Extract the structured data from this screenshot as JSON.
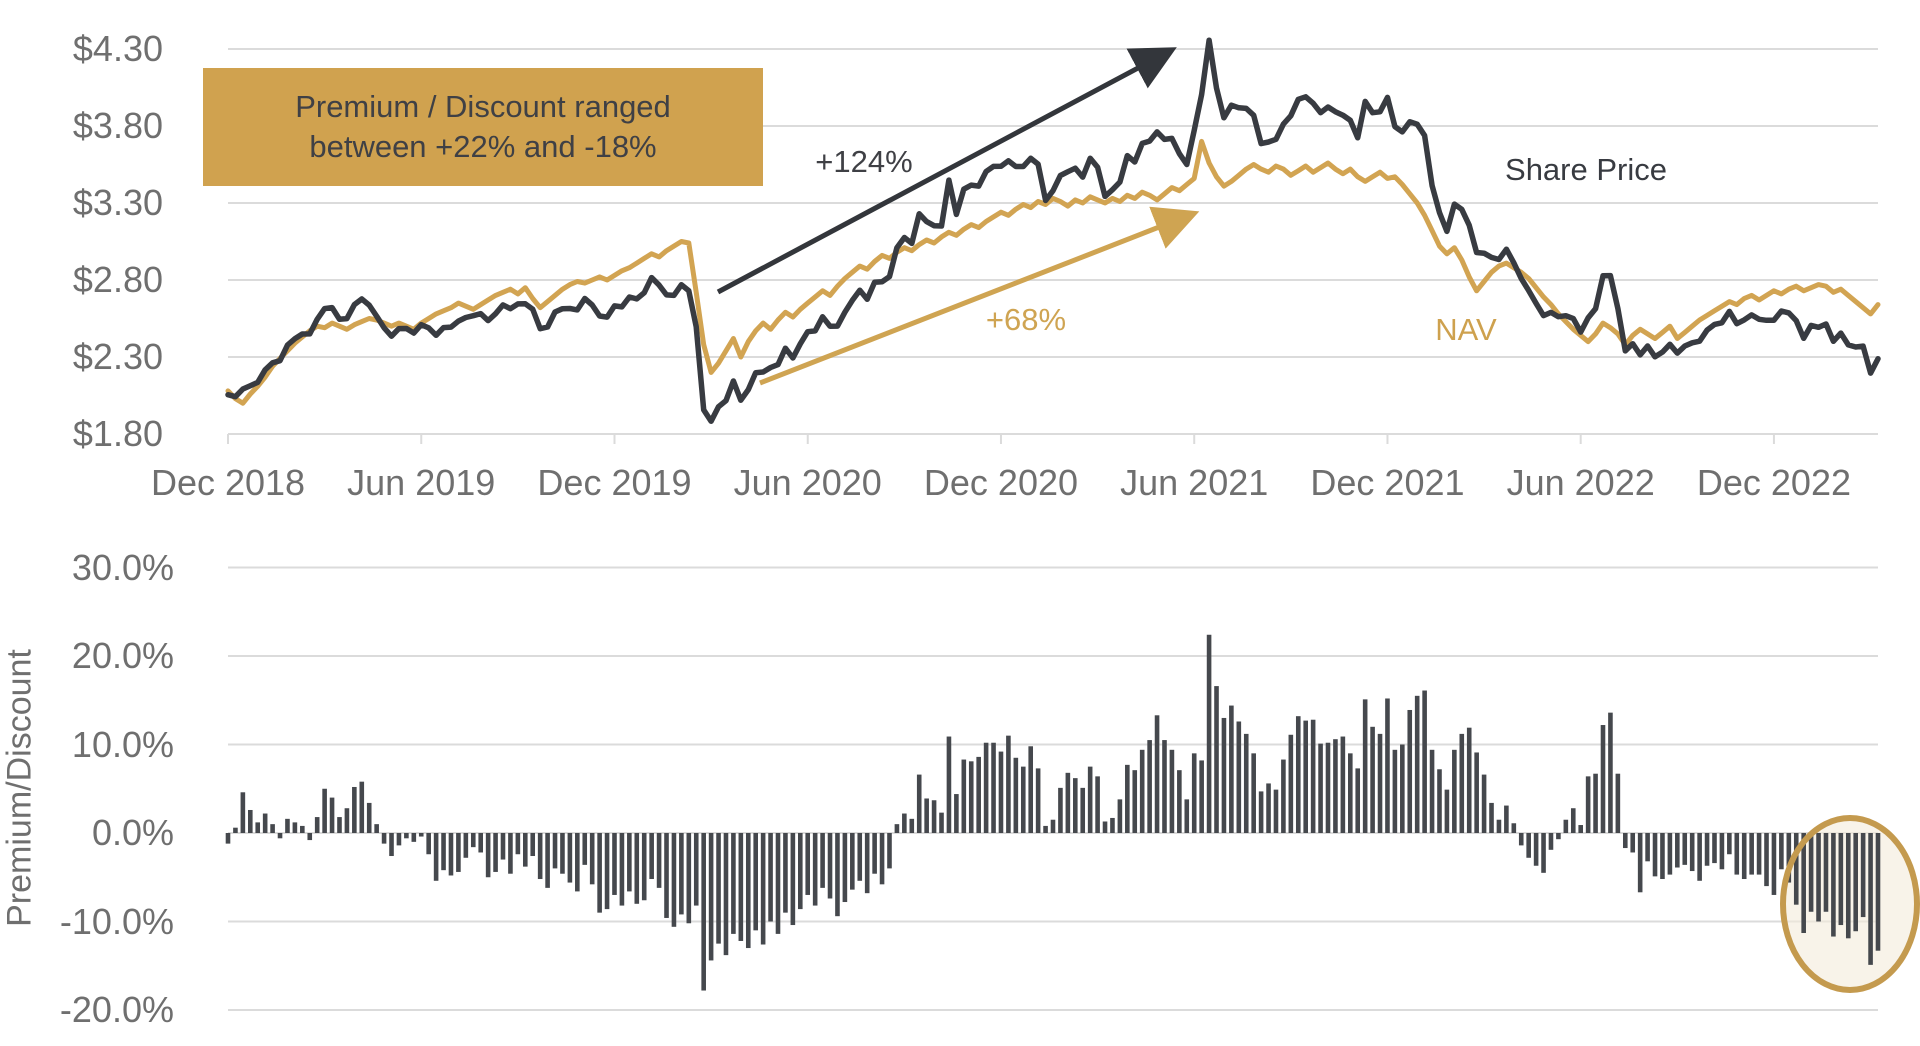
{
  "colors": {
    "share_line": "#383B41",
    "nav_line": "#D2A452",
    "bars": "#45484D",
    "grid": "#DBDBDB",
    "tick_text": "#6F6F6F",
    "annotation_box_bg": "#D0A24F",
    "annotation_box_text": "#3F4045",
    "black_arrow": "#33363B",
    "gold_arrow": "#CFA452",
    "circle_stroke": "#C49A4E",
    "circle_fill": "#F3ECDC",
    "background": "#FFFFFF"
  },
  "annotations": {
    "box_line1": "Premium / Discount ranged",
    "box_line2": "between +22% and -18%",
    "share_growth": "+124%",
    "nav_growth": "+68%",
    "share_label": "Share Price",
    "nav_label": "NAV"
  },
  "chart_data": [
    {
      "type": "line",
      "title": "Share Price vs NAV",
      "x_tick_labels": [
        "Dec 2018",
        "Jun 2019",
        "Dec 2019",
        "Jun 2020",
        "Dec 2020",
        "Jun 2021",
        "Dec 2021",
        "Jun 2022",
        "Dec 2022"
      ],
      "x_tick_week_index": [
        0,
        26,
        52,
        78,
        104,
        130,
        156,
        182,
        208
      ],
      "y_ticks": [
        {
          "label": "$4.30",
          "value": 4.3
        },
        {
          "label": "$3.80",
          "value": 3.8
        },
        {
          "label": "$3.30",
          "value": 3.3
        },
        {
          "label": "$2.80",
          "value": 2.8
        },
        {
          "label": "$2.30",
          "value": 2.3
        },
        {
          "label": "$1.80",
          "value": 1.8
        }
      ],
      "ylim": [
        1.8,
        4.3
      ],
      "grid": true,
      "legend_position": "inline-labels",
      "series": [
        {
          "name": "NAV",
          "color": "#D2A452",
          "values": [
            2.08,
            2.03,
            2.0,
            2.06,
            2.11,
            2.17,
            2.24,
            2.29,
            2.34,
            2.39,
            2.43,
            2.47,
            2.5,
            2.49,
            2.52,
            2.5,
            2.48,
            2.51,
            2.53,
            2.55,
            2.54,
            2.52,
            2.5,
            2.52,
            2.5,
            2.48,
            2.52,
            2.55,
            2.58,
            2.6,
            2.62,
            2.65,
            2.63,
            2.61,
            2.64,
            2.67,
            2.7,
            2.72,
            2.74,
            2.71,
            2.75,
            2.68,
            2.62,
            2.66,
            2.7,
            2.74,
            2.77,
            2.79,
            2.78,
            2.8,
            2.82,
            2.8,
            2.83,
            2.86,
            2.88,
            2.91,
            2.94,
            2.97,
            2.95,
            2.99,
            3.02,
            3.05,
            3.04,
            2.72,
            2.38,
            2.2,
            2.26,
            2.34,
            2.42,
            2.3,
            2.4,
            2.47,
            2.52,
            2.48,
            2.54,
            2.59,
            2.56,
            2.61,
            2.65,
            2.69,
            2.73,
            2.7,
            2.76,
            2.81,
            2.85,
            2.89,
            2.87,
            2.92,
            2.96,
            2.94,
            2.98,
            3.01,
            2.99,
            3.03,
            3.06,
            3.04,
            3.08,
            3.11,
            3.09,
            3.13,
            3.16,
            3.14,
            3.18,
            3.21,
            3.24,
            3.22,
            3.26,
            3.29,
            3.27,
            3.31,
            3.29,
            3.33,
            3.31,
            3.28,
            3.32,
            3.3,
            3.34,
            3.32,
            3.3,
            3.33,
            3.31,
            3.35,
            3.33,
            3.37,
            3.35,
            3.32,
            3.36,
            3.4,
            3.38,
            3.42,
            3.46,
            3.7,
            3.56,
            3.47,
            3.41,
            3.44,
            3.48,
            3.52,
            3.55,
            3.52,
            3.5,
            3.54,
            3.52,
            3.48,
            3.51,
            3.54,
            3.5,
            3.53,
            3.56,
            3.52,
            3.49,
            3.52,
            3.47,
            3.44,
            3.47,
            3.5,
            3.46,
            3.47,
            3.42,
            3.36,
            3.3,
            3.22,
            3.12,
            3.02,
            2.97,
            3.01,
            2.93,
            2.82,
            2.73,
            2.79,
            2.85,
            2.89,
            2.91,
            2.88,
            2.85,
            2.81,
            2.75,
            2.69,
            2.64,
            2.58,
            2.53,
            2.48,
            2.44,
            2.4,
            2.45,
            2.52,
            2.49,
            2.45,
            2.38,
            2.44,
            2.48,
            2.45,
            2.42,
            2.46,
            2.5,
            2.42,
            2.46,
            2.5,
            2.54,
            2.57,
            2.6,
            2.63,
            2.66,
            2.64,
            2.68,
            2.7,
            2.67,
            2.7,
            2.73,
            2.71,
            2.74,
            2.76,
            2.73,
            2.75,
            2.77,
            2.76,
            2.72,
            2.74,
            2.7,
            2.66,
            2.62,
            2.58,
            2.64
          ]
        },
        {
          "name": "Share Price",
          "color": "#383B41",
          "derived": "nav * (1 + premium_pct/100)"
        }
      ]
    },
    {
      "type": "bar",
      "title": "Premium/Discount",
      "ylabel": "Premium/Discount",
      "y_ticks": [
        {
          "label": "30.0%",
          "value": 30
        },
        {
          "label": "20.0%",
          "value": 20
        },
        {
          "label": "10.0%",
          "value": 10
        },
        {
          "label": "0.0%",
          "value": 0
        },
        {
          "label": "-10.0%",
          "value": -10
        },
        {
          "label": "-20.0%",
          "value": -20
        }
      ],
      "ylim": [
        -20,
        30
      ],
      "grid": true,
      "highlight_ellipse": {
        "center_week": 218,
        "center_pct": -8.0,
        "note": "recent discount cluster"
      },
      "premium_pct": [
        -1.2,
        0.6,
        4.6,
        2.6,
        1.2,
        2.2,
        1.0,
        -0.6,
        1.6,
        1.2,
        0.8,
        -0.8,
        1.8,
        5.0,
        4.0,
        1.8,
        2.8,
        5.2,
        5.8,
        3.4,
        1.0,
        -1.2,
        -2.6,
        -1.4,
        -0.6,
        -1.0,
        -0.4,
        -2.4,
        -5.4,
        -4.2,
        -4.8,
        -4.4,
        -2.8,
        -1.6,
        -2.2,
        -5.0,
        -4.4,
        -3.0,
        -4.6,
        -2.4,
        -3.8,
        -2.6,
        -5.2,
        -6.2,
        -4.0,
        -4.6,
        -5.6,
        -6.6,
        -3.6,
        -5.8,
        -9.0,
        -8.6,
        -7.0,
        -8.2,
        -6.6,
        -8.0,
        -7.6,
        -5.2,
        -6.2,
        -9.6,
        -10.6,
        -9.2,
        -10.2,
        -8.2,
        -17.8,
        -14.4,
        -12.5,
        -13.8,
        -11.4,
        -12.2,
        -13.0,
        -11.0,
        -12.6,
        -10.0,
        -11.4,
        -9.0,
        -10.4,
        -8.6,
        -7.0,
        -8.2,
        -6.2,
        -7.4,
        -9.4,
        -7.8,
        -6.4,
        -5.4,
        -6.8,
        -4.6,
        -5.8,
        -4.0,
        1.0,
        2.2,
        1.6,
        6.6,
        3.9,
        3.7,
        2.3,
        10.9,
        4.4,
        8.3,
        8.1,
        8.6,
        10.2,
        10.2,
        9.2,
        11.0,
        8.5,
        7.5,
        9.8,
        7.3,
        0.8,
        1.5,
        5.1,
        6.8,
        6.2,
        5.1,
        7.5,
        6.4,
        1.3,
        1.7,
        3.8,
        7.7,
        7.1,
        9.4,
        10.5,
        13.3,
        10.5,
        9.4,
        7.1,
        3.8,
        9.0,
        8.2,
        22.4,
        16.6,
        13.0,
        14.4,
        12.6,
        11.2,
        9.0,
        4.7,
        5.6,
        4.9,
        8.3,
        11.1,
        13.2,
        12.7,
        12.8,
        10.1,
        10.2,
        10.6,
        10.9,
        9.0,
        7.3,
        15.1,
        12.0,
        11.2,
        15.2,
        9.4,
        10.0,
        13.9,
        15.5,
        16.1,
        9.4,
        7.2,
        4.9,
        9.4,
        11.2,
        11.9,
        9.1,
        6.6,
        3.4,
        1.5,
        3.1,
        1.1,
        -1.4,
        -2.8,
        -3.7,
        -4.5,
        -1.9,
        -0.7,
        1.5,
        2.8,
        0.9,
        6.4,
        6.7,
        12.2,
        13.6,
        6.7,
        -1.7,
        -2.2,
        -6.7,
        -3.2,
        -4.9,
        -5.2,
        -4.7,
        -3.9,
        -3.6,
        -4.3,
        -5.4,
        -3.7,
        -3.4,
        -4.1,
        -2.4,
        -4.7,
        -5.2,
        -4.7,
        -4.7,
        -6.0,
        -7.0,
        -4.1,
        -5.6,
        -8.1,
        -11.3,
        -8.9,
        -10.0,
        -8.9,
        -11.7,
        -10.4,
        -11.9,
        -11.1,
        -9.5,
        -14.9,
        -13.3
      ]
    }
  ]
}
